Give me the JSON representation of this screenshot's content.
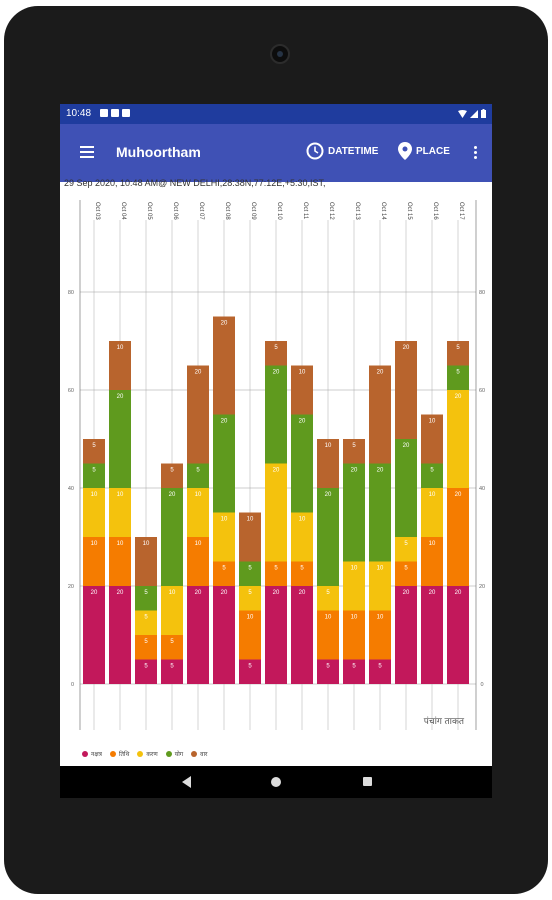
{
  "status_bar": {
    "time": "10:48"
  },
  "app_bar": {
    "title": "Muhoortham",
    "datetime_label": "DATETIME",
    "place_label": "PLACE"
  },
  "subtitle": "29 Sep 2020, 10:48 AM@ NEW DELHI,28:38N,77:12E,+5:30,IST,",
  "chart_data": {
    "type": "bar",
    "stacked": true,
    "categories": [
      "Oct 03",
      "Oct 04",
      "Oct 05",
      "Oct 06",
      "Oct 07",
      "Oct 08",
      "Oct 09",
      "Oct 10",
      "Oct 11",
      "Oct 12",
      "Oct 13",
      "Oct 14",
      "Oct 15",
      "Oct 16",
      "Oct 17"
    ],
    "series": [
      {
        "name": "नक्षत्र",
        "color": "#c2185b",
        "values": [
          20,
          20,
          5,
          5,
          20,
          20,
          5,
          20,
          20,
          5,
          5,
          5,
          20,
          20,
          20
        ]
      },
      {
        "name": "तिथि",
        "color": "#f57c00",
        "values": [
          10,
          10,
          5,
          5,
          10,
          5,
          10,
          5,
          5,
          10,
          10,
          10,
          5,
          10,
          20
        ]
      },
      {
        "name": "करण",
        "color": "#f4c20d",
        "values": [
          10,
          10,
          5,
          10,
          10,
          10,
          5,
          20,
          10,
          5,
          10,
          10,
          5,
          10,
          20
        ]
      },
      {
        "name": "योग",
        "color": "#5f9a1e",
        "values": [
          5,
          20,
          5,
          20,
          5,
          20,
          5,
          20,
          20,
          20,
          20,
          20,
          20,
          5,
          5
        ]
      },
      {
        "name": "वार",
        "color": "#b8642d",
        "values": [
          5,
          10,
          10,
          5,
          20,
          20,
          10,
          5,
          10,
          10,
          5,
          20,
          20,
          10,
          5
        ]
      }
    ],
    "ylim": [
      0,
      80
    ],
    "yticks": [
      0,
      20,
      40,
      60,
      80
    ],
    "grid": true,
    "legend": "bottom-left",
    "annotation": "पंचांग ताकत"
  }
}
